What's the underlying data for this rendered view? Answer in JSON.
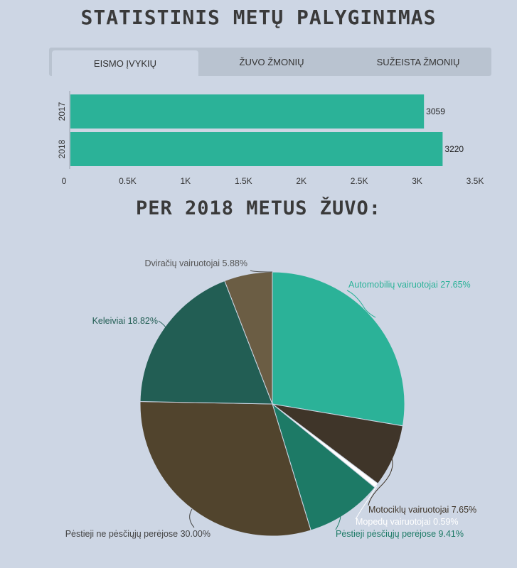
{
  "header": {
    "title": "STATISTINIS METŲ PALYGINIMAS"
  },
  "tabs": [
    {
      "label": "Eismo įvykių",
      "active": true
    },
    {
      "label": "Žuvo žmonių",
      "active": false
    },
    {
      "label": "Sužeista žmonių",
      "active": false
    }
  ],
  "pie_section": {
    "title": "PER 2018 METUS ŽUVO:"
  },
  "colors": {
    "bar": "#2bb298",
    "automobiliu": "#2bb298",
    "motociklu": "#3f3529",
    "mopedu": "#ffffff",
    "pestieji_perejose": "#1d7a66",
    "pestieji_ne_perejose": "#51442d",
    "keleiviai": "#225e54",
    "dviraciu": "#6b5d44"
  },
  "chart_data": [
    {
      "type": "bar",
      "orientation": "horizontal",
      "categories": [
        "2017",
        "2018"
      ],
      "values": [
        3059,
        3220
      ],
      "value_labels": [
        "3059",
        "3220"
      ],
      "xlim": [
        0,
        3500
      ],
      "xticks": [
        0,
        500,
        1000,
        1500,
        2000,
        2500,
        3000,
        3500
      ],
      "xtick_labels": [
        "0",
        "0.5K",
        "1K",
        "1.5K",
        "2K",
        "2.5K",
        "3K",
        "3.5K"
      ]
    },
    {
      "type": "pie",
      "title": "PER 2018 METUS ŽUVO:",
      "slices": [
        {
          "label": "Automobilių vairuotojai",
          "value": 27.65,
          "display": "Automobilių vairuotojai 27.65%",
          "color_key": "automobiliu",
          "label_color": "#2bb298"
        },
        {
          "label": "Motociklų vairuotojai",
          "value": 7.65,
          "display": "Motociklų vairuotojai 7.65%",
          "color_key": "motociklu",
          "label_color": "#3f3529"
        },
        {
          "label": "Mopedų vairuotojai",
          "value": 0.59,
          "display": "Mopedų vairuotojai 0.59%",
          "color_key": "mopedu",
          "label_color": "#ffffff"
        },
        {
          "label": "Pėstieji pėsčiųjų perėjose",
          "value": 9.41,
          "display": "Pėstieji pėsčiųjų perėjose 9.41%",
          "color_key": "pestieji_perejose",
          "label_color": "#1d7a66"
        },
        {
          "label": "Pėstieji ne pėsčiųjų perėjose",
          "value": 30.0,
          "display": "Pėstieji ne pėsčiųjų perėjose 30.00%",
          "color_key": "pestieji_ne_perejose",
          "label_color": "#444444"
        },
        {
          "label": "Keleiviai",
          "value": 18.82,
          "display": "Keleiviai 18.82%",
          "color_key": "keleiviai",
          "label_color": "#225e54"
        },
        {
          "label": "Dviračių vairuotojai",
          "value": 5.88,
          "display": "Dviračių vairuotojai 5.88%",
          "color_key": "dviraciu",
          "label_color": "#555555"
        }
      ]
    }
  ]
}
